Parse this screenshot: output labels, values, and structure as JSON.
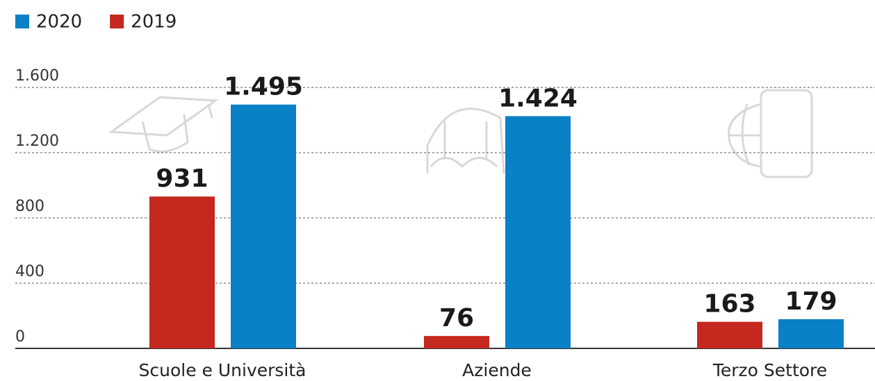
{
  "chart_data": {
    "type": "bar",
    "categories": [
      "Scuole e Università",
      "Aziende",
      "Terzo Settore"
    ],
    "series": [
      {
        "name": "2019",
        "color": "#c4281f",
        "values": [
          931,
          76,
          163
        ],
        "value_labels": [
          "931",
          "76",
          "163"
        ]
      },
      {
        "name": "2020",
        "color": "#0a80c6",
        "values": [
          1495,
          1424,
          179
        ],
        "value_labels": [
          "1.495",
          "1.424",
          "179"
        ]
      }
    ],
    "legend_order": [
      1,
      0
    ],
    "ylim": [
      0,
      1600
    ],
    "yticks": [
      0,
      400,
      800,
      {
        "value": 1200,
        "label": "1.200"
      },
      {
        "value": 1600,
        "label": "1.600"
      }
    ],
    "grid": true
  }
}
